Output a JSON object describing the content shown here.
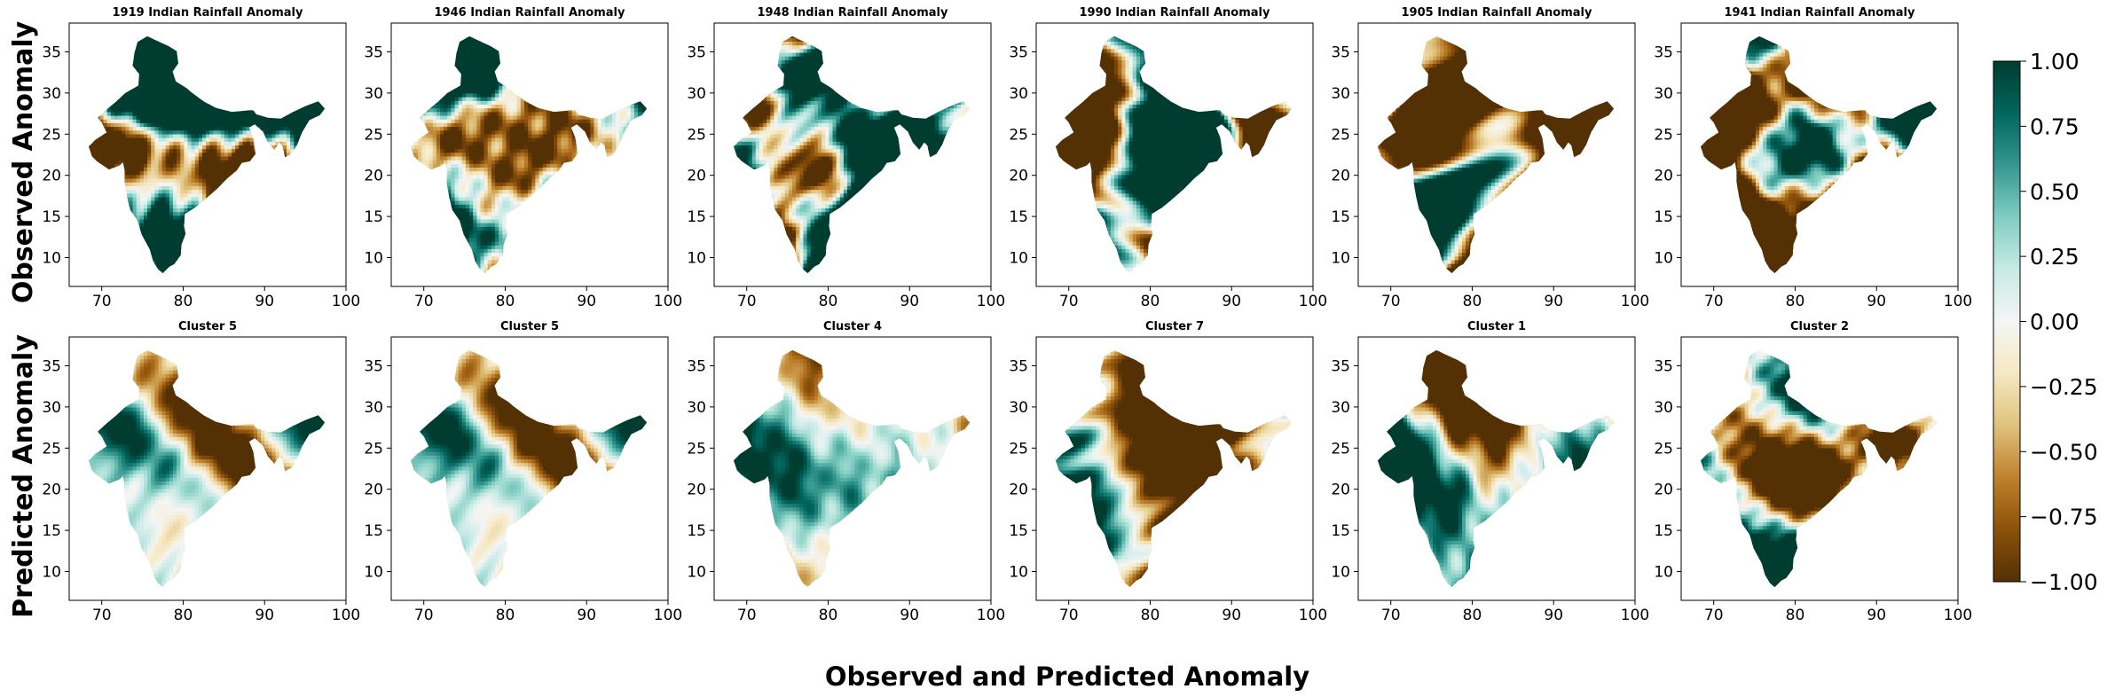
{
  "figure": {
    "row_labels": [
      "Observed Anomaly",
      "Predicted Anomaly"
    ],
    "xlabel": "Observed and Predicted Anomaly"
  },
  "colors": {
    "colormap": "BrBG",
    "stops": [
      "#543005",
      "#8c510a",
      "#bf812d",
      "#dfc27d",
      "#f6e8c3",
      "#f5f5f5",
      "#c7eae5",
      "#80cdc1",
      "#35978f",
      "#01665e",
      "#003c30"
    ]
  },
  "chart_data": {
    "type": "heatmap",
    "map_region": "India",
    "xlim": [
      66,
      100
    ],
    "ylim": [
      6.5,
      38.5
    ],
    "x_ticks": [
      70,
      80,
      90,
      100
    ],
    "y_ticks": [
      10,
      15,
      20,
      25,
      30,
      35
    ],
    "colorbar": {
      "range": [
        -1.0,
        1.0
      ],
      "ticks": [
        -1.0,
        -0.75,
        -0.5,
        -0.25,
        0.0,
        0.25,
        0.5,
        0.75,
        1.0
      ],
      "tick_labels": [
        "−1.00",
        "−0.75",
        "−0.50",
        "−0.25",
        "0.00",
        "0.25",
        "0.50",
        "0.75",
        "1.00"
      ]
    },
    "panels": [
      {
        "row": 0,
        "col": 0,
        "title": "1919 Indian Rainfall Anomaly",
        "seed": 11,
        "bias": 0.25,
        "contrast": 2.4
      },
      {
        "row": 0,
        "col": 1,
        "title": "1946 Indian Rainfall Anomaly",
        "seed": 23,
        "bias": 0.15,
        "contrast": 2.4
      },
      {
        "row": 0,
        "col": 2,
        "title": "1948 Indian Rainfall Anomaly",
        "seed": 37,
        "bias": 0.2,
        "contrast": 2.4
      },
      {
        "row": 0,
        "col": 3,
        "title": "1990 Indian Rainfall Anomaly",
        "seed": 41,
        "bias": 0.4,
        "contrast": 2.4
      },
      {
        "row": 0,
        "col": 4,
        "title": "1905 Indian Rainfall Anomaly",
        "seed": 53,
        "bias": -0.7,
        "contrast": 2.4
      },
      {
        "row": 0,
        "col": 5,
        "title": "1941 Indian Rainfall Anomaly",
        "seed": 67,
        "bias": -0.35,
        "contrast": 2.4
      },
      {
        "row": 1,
        "col": 0,
        "title": "Cluster 5",
        "seed": 71,
        "bias": 0.15,
        "contrast": 1.1
      },
      {
        "row": 1,
        "col": 1,
        "title": "Cluster 5",
        "seed": 71,
        "bias": 0.18,
        "contrast": 1.1
      },
      {
        "row": 1,
        "col": 2,
        "title": "Cluster 4",
        "seed": 83,
        "bias": 0.2,
        "contrast": 1.0
      },
      {
        "row": 1,
        "col": 3,
        "title": "Cluster 7",
        "seed": 97,
        "bias": -0.2,
        "contrast": 1.8
      },
      {
        "row": 1,
        "col": 4,
        "title": "Cluster 1",
        "seed": 101,
        "bias": -0.15,
        "contrast": 1.4
      },
      {
        "row": 1,
        "col": 5,
        "title": "Cluster 2",
        "seed": 113,
        "bias": -0.25,
        "contrast": 1.6
      }
    ]
  }
}
